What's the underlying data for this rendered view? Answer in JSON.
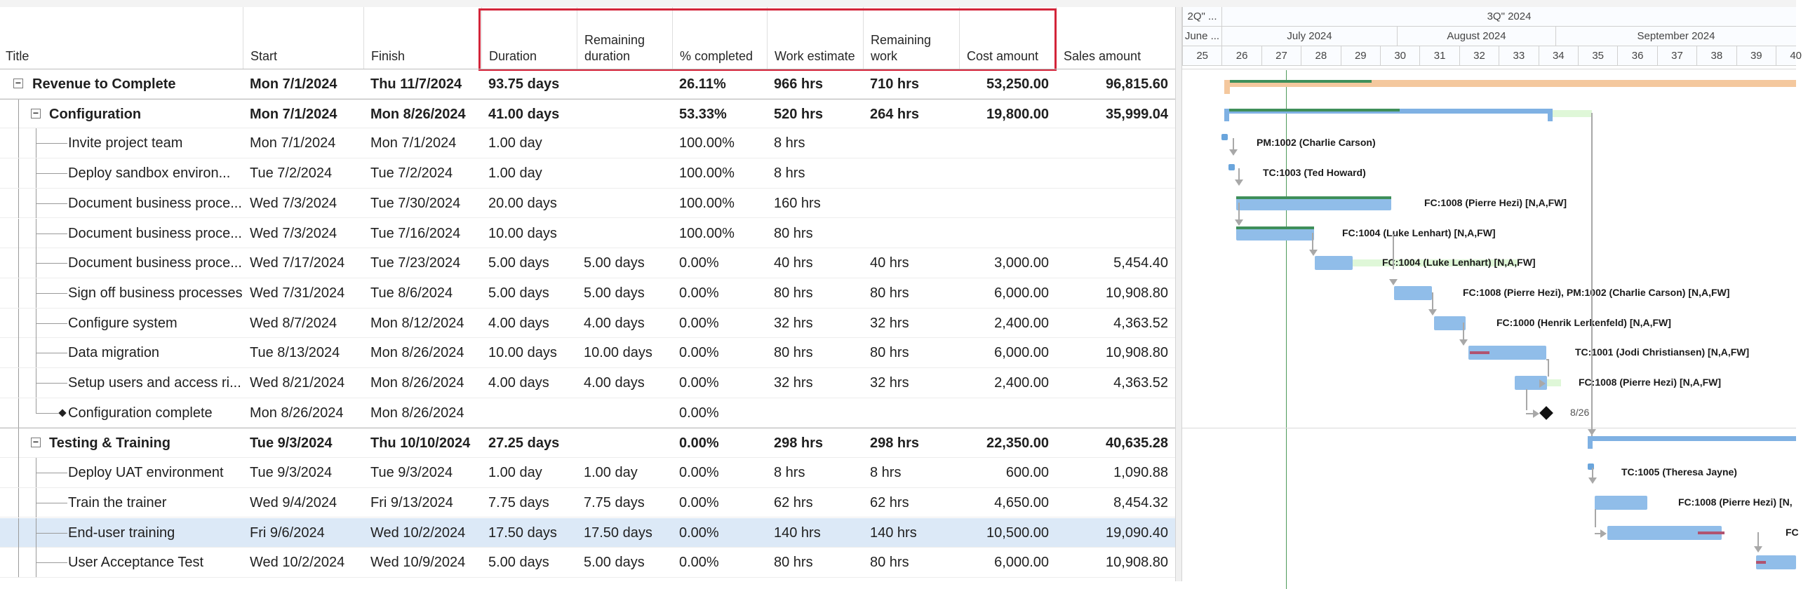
{
  "columns": [
    {
      "label": "Title"
    },
    {
      "label": "Start"
    },
    {
      "label": "Finish"
    },
    {
      "label": "Duration"
    },
    {
      "label": "Remaining\nduration"
    },
    {
      "label": "% completed"
    },
    {
      "label": "Work estimate"
    },
    {
      "label": "Remaining\nwork"
    },
    {
      "label": "Cost amount"
    },
    {
      "label": "Sales amount"
    }
  ],
  "rows": [
    {
      "title": "Revenue to Complete",
      "level": 0,
      "type": "summary",
      "start": "Mon 7/1/2024",
      "finish": "Thu 11/7/2024",
      "duration": "93.75 days",
      "remaining_duration": "",
      "pct": "26.11%",
      "work": "966 hrs",
      "remaining_work": "710 hrs",
      "cost": "53,250.00",
      "sales": "96,815.60"
    },
    {
      "title": "Configuration",
      "level": 1,
      "type": "summary",
      "start": "Mon 7/1/2024",
      "finish": "Mon 8/26/2024",
      "duration": "41.00 days",
      "remaining_duration": "",
      "pct": "53.33%",
      "work": "520 hrs",
      "remaining_work": "264 hrs",
      "cost": "19,800.00",
      "sales": "35,999.04"
    },
    {
      "title": "Invite project team",
      "level": 2,
      "type": "task",
      "start": "Mon 7/1/2024",
      "finish": "Mon 7/1/2024",
      "duration": "1.00 day",
      "remaining_duration": "",
      "pct": "100.00%",
      "work": "8 hrs",
      "remaining_work": "",
      "cost": "",
      "sales": ""
    },
    {
      "title": "Deploy sandbox environ...",
      "level": 2,
      "type": "task",
      "start": "Tue 7/2/2024",
      "finish": "Tue 7/2/2024",
      "duration": "1.00 day",
      "remaining_duration": "",
      "pct": "100.00%",
      "work": "8 hrs",
      "remaining_work": "",
      "cost": "",
      "sales": ""
    },
    {
      "title": "Document business proce...",
      "level": 2,
      "type": "task",
      "start": "Wed 7/3/2024",
      "finish": "Tue 7/30/2024",
      "duration": "20.00 days",
      "remaining_duration": "",
      "pct": "100.00%",
      "work": "160 hrs",
      "remaining_work": "",
      "cost": "",
      "sales": ""
    },
    {
      "title": "Document business proce...",
      "level": 2,
      "type": "task",
      "start": "Wed 7/3/2024",
      "finish": "Tue 7/16/2024",
      "duration": "10.00 days",
      "remaining_duration": "",
      "pct": "100.00%",
      "work": "80 hrs",
      "remaining_work": "",
      "cost": "",
      "sales": ""
    },
    {
      "title": "Document business proce...",
      "level": 2,
      "type": "task",
      "start": "Wed 7/17/2024",
      "finish": "Tue 7/23/2024",
      "duration": "5.00 days",
      "remaining_duration": "5.00 days",
      "pct": "0.00%",
      "work": "40 hrs",
      "remaining_work": "40 hrs",
      "cost": "3,000.00",
      "sales": "5,454.40"
    },
    {
      "title": "Sign off business processes",
      "level": 2,
      "type": "task",
      "start": "Wed 7/31/2024",
      "finish": "Tue 8/6/2024",
      "duration": "5.00 days",
      "remaining_duration": "5.00 days",
      "pct": "0.00%",
      "work": "80 hrs",
      "remaining_work": "80 hrs",
      "cost": "6,000.00",
      "sales": "10,908.80"
    },
    {
      "title": "Configure system",
      "level": 2,
      "type": "task",
      "start": "Wed 8/7/2024",
      "finish": "Mon 8/12/2024",
      "duration": "4.00 days",
      "remaining_duration": "4.00 days",
      "pct": "0.00%",
      "work": "32 hrs",
      "remaining_work": "32 hrs",
      "cost": "2,400.00",
      "sales": "4,363.52"
    },
    {
      "title": "Data migration",
      "level": 2,
      "type": "task",
      "start": "Tue 8/13/2024",
      "finish": "Mon 8/26/2024",
      "duration": "10.00 days",
      "remaining_duration": "10.00 days",
      "pct": "0.00%",
      "work": "80 hrs",
      "remaining_work": "80 hrs",
      "cost": "6,000.00",
      "sales": "10,908.80"
    },
    {
      "title": "Setup users and access ri...",
      "level": 2,
      "type": "task",
      "start": "Wed 8/21/2024",
      "finish": "Mon 8/26/2024",
      "duration": "4.00 days",
      "remaining_duration": "4.00 days",
      "pct": "0.00%",
      "work": "32 hrs",
      "remaining_work": "32 hrs",
      "cost": "2,400.00",
      "sales": "4,363.52"
    },
    {
      "title": "Configuration complete",
      "level": 2,
      "type": "milestone",
      "start": "Mon 8/26/2024",
      "finish": "Mon 8/26/2024",
      "duration": "",
      "remaining_duration": "",
      "pct": "0.00%",
      "work": "",
      "remaining_work": "",
      "cost": "",
      "sales": ""
    },
    {
      "title": "Testing & Training",
      "level": 1,
      "type": "summary",
      "start": "Tue 9/3/2024",
      "finish": "Thu 10/10/2024",
      "duration": "27.25 days",
      "remaining_duration": "",
      "pct": "0.00%",
      "work": "298 hrs",
      "remaining_work": "298 hrs",
      "cost": "22,350.00",
      "sales": "40,635.28"
    },
    {
      "title": "Deploy UAT environment",
      "level": 2,
      "type": "task",
      "start": "Tue 9/3/2024",
      "finish": "Tue 9/3/2024",
      "duration": "1.00 day",
      "remaining_duration": "1.00 day",
      "pct": "0.00%",
      "work": "8 hrs",
      "remaining_work": "8 hrs",
      "cost": "600.00",
      "sales": "1,090.88"
    },
    {
      "title": "Train the trainer",
      "level": 2,
      "type": "task",
      "start": "Wed 9/4/2024",
      "finish": "Fri 9/13/2024",
      "duration": "7.75 days",
      "remaining_duration": "7.75 days",
      "pct": "0.00%",
      "work": "62 hrs",
      "remaining_work": "62 hrs",
      "cost": "4,650.00",
      "sales": "8,454.32"
    },
    {
      "title": "End-user training",
      "level": 2,
      "type": "task",
      "selected": true,
      "start": "Fri 9/6/2024",
      "finish": "Wed 10/2/2024",
      "duration": "17.50 days",
      "remaining_duration": "17.50 days",
      "pct": "0.00%",
      "work": "140 hrs",
      "remaining_work": "140 hrs",
      "cost": "10,500.00",
      "sales": "19,090.40"
    },
    {
      "title": "User Acceptance Test",
      "level": 2,
      "type": "task",
      "start": "Wed 10/2/2024",
      "finish": "Wed 10/9/2024",
      "duration": "5.00 days",
      "remaining_duration": "5.00 days",
      "pct": "0.00%",
      "work": "80 hrs",
      "remaining_work": "80 hrs",
      "cost": "6,000.00",
      "sales": "10,908.80"
    }
  ],
  "timeline": {
    "quarters": [
      "2Q\" ...",
      "3Q\" 2024"
    ],
    "months": [
      "June ...",
      "July 2024",
      "August 2024",
      "September 2024"
    ],
    "weeks": [
      "25",
      "26",
      "27",
      "28",
      "29",
      "30",
      "31",
      "32",
      "33",
      "34",
      "35",
      "36",
      "37",
      "38",
      "39",
      "40"
    ]
  },
  "gantt_labels": [
    "PM:1002 (Charlie Carson)",
    "TC:1003 (Ted Howard)",
    "FC:1008 (Pierre Hezi) [N,A,FW]",
    "FC:1004 (Luke Lenhart) [N,A,FW]",
    "FC:1004 (Luke Lenhart) [N,A,FW]",
    "FC:1008 (Pierre Hezi), PM:1002 (Charlie Carson) [N,A,FW]",
    "FC:1000 (Henrik Lerkenfeld) [N,A,FW]",
    "TC:1001 (Jodi Christiansen) [N,A,FW]",
    "FC:1008 (Pierre Hezi) [N,A,FW]",
    "8/26",
    "TC:1005 (Theresa Jayne)",
    "FC:1008 (Pierre Hezi) [N,",
    "FC"
  ],
  "colors": {
    "highlight": "#d3253a",
    "bar": "#90bde9",
    "progress": "#3f8f5a",
    "slack": "#dff7d8",
    "critical": "#b05370",
    "selected_row": "#dce9f7"
  }
}
